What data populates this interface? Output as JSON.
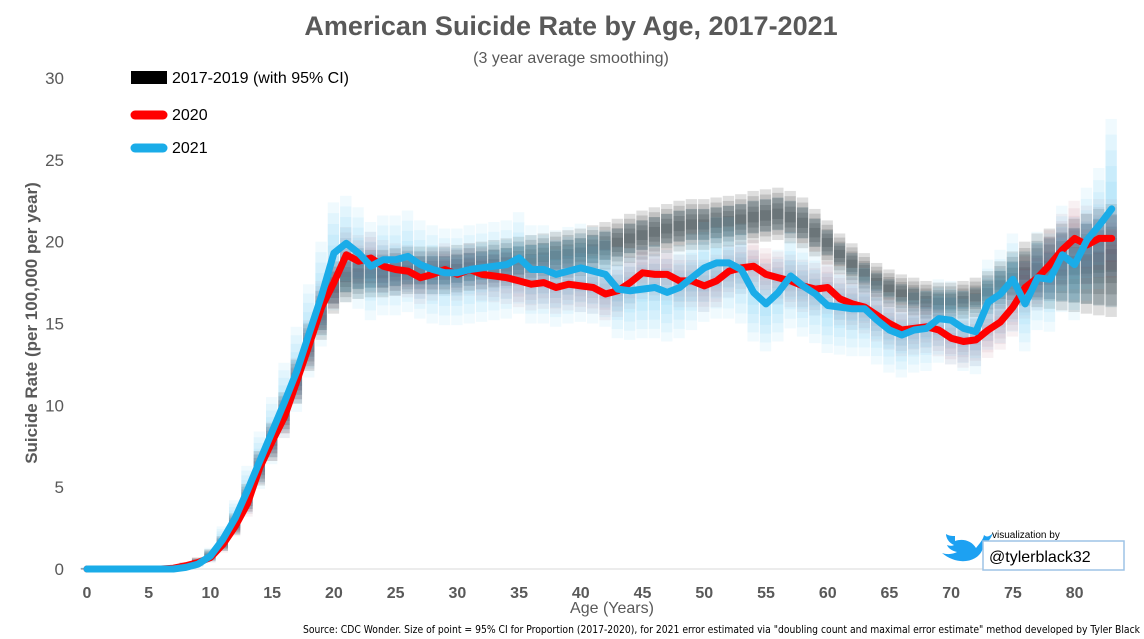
{
  "chart_data": {
    "type": "line",
    "title": "American Suicide Rate by Age, 2017-2021",
    "subtitle": "(3 year average smoothing)",
    "xlabel": "Age (Years)",
    "ylabel": "Suicide Rate (per 100,000 per year)",
    "xlim": [
      0,
      84
    ],
    "ylim": [
      0,
      30
    ],
    "xticks": [
      0,
      5,
      10,
      15,
      20,
      25,
      30,
      35,
      40,
      45,
      50,
      55,
      60,
      65,
      70,
      75,
      80
    ],
    "yticks": [
      0,
      5,
      10,
      15,
      20,
      25,
      30
    ],
    "legend_position": "top-left",
    "series": [
      {
        "name": "2017-2019 (with 95% CI)",
        "color": "#000000",
        "x": [
          0,
          1,
          2,
          3,
          4,
          5,
          6,
          7,
          8,
          9,
          10,
          11,
          12,
          13,
          14,
          15,
          16,
          17,
          18,
          19,
          20,
          21,
          22,
          23,
          24,
          25,
          26,
          27,
          28,
          29,
          30,
          31,
          32,
          33,
          34,
          35,
          36,
          37,
          38,
          39,
          40,
          41,
          42,
          43,
          44,
          45,
          46,
          47,
          48,
          49,
          50,
          51,
          52,
          53,
          54,
          55,
          56,
          57,
          58,
          59,
          60,
          61,
          62,
          63,
          64,
          65,
          66,
          67,
          68,
          69,
          70,
          71,
          72,
          73,
          74,
          75,
          76,
          77,
          78,
          79,
          80,
          81,
          82,
          83
        ],
        "values": [
          0,
          0,
          0,
          0,
          0,
          0,
          0,
          0.05,
          0.2,
          0.4,
          0.8,
          1.5,
          2.7,
          4.3,
          6.1,
          7.7,
          9.5,
          11.4,
          13.5,
          15.5,
          17.2,
          17.8,
          18.0,
          18.0,
          18.0,
          18.1,
          18.2,
          18.2,
          18.2,
          18.2,
          18.3,
          18.4,
          18.5,
          18.6,
          18.7,
          18.8,
          18.9,
          19.0,
          19.1,
          19.2,
          19.3,
          19.5,
          19.7,
          19.9,
          20.2,
          20.4,
          20.6,
          20.8,
          20.9,
          21.0,
          21.0,
          21.1,
          21.2,
          21.3,
          21.5,
          21.6,
          21.7,
          21.5,
          21.1,
          20.5,
          19.9,
          19.2,
          18.6,
          18.0,
          17.5,
          17.1,
          16.8,
          16.6,
          16.4,
          16.3,
          16.3,
          16.4,
          16.6,
          16.9,
          17.3,
          17.7,
          18.0,
          18.3,
          18.5,
          18.6,
          18.6,
          18.6,
          18.6,
          18.6
        ],
        "ci_low": [
          0,
          0,
          0,
          0,
          0,
          0,
          0,
          0,
          0.05,
          0.2,
          0.5,
          1.1,
          2.1,
          3.5,
          5.1,
          6.6,
          8.3,
          10.1,
          12.1,
          14.0,
          15.6,
          16.3,
          16.5,
          16.6,
          16.6,
          16.7,
          16.8,
          16.8,
          16.8,
          16.8,
          16.9,
          17.0,
          17.1,
          17.2,
          17.3,
          17.4,
          17.5,
          17.6,
          17.7,
          17.8,
          17.9,
          18.1,
          18.3,
          18.5,
          18.7,
          18.9,
          19.1,
          19.3,
          19.4,
          19.5,
          19.5,
          19.6,
          19.7,
          19.8,
          19.9,
          20.0,
          20.1,
          19.9,
          19.6,
          19.1,
          18.6,
          18.0,
          17.4,
          16.9,
          16.4,
          16.0,
          15.7,
          15.5,
          15.3,
          15.2,
          15.2,
          15.3,
          15.4,
          15.6,
          15.9,
          16.1,
          16.1,
          16.0,
          15.9,
          15.8,
          15.7,
          15.6,
          15.5,
          15.4
        ],
        "ci_high": [
          0.05,
          0.05,
          0.05,
          0.05,
          0.05,
          0.05,
          0.05,
          0.2,
          0.4,
          0.7,
          1.2,
          2.0,
          3.4,
          5.2,
          7.2,
          8.9,
          10.8,
          12.8,
          15.0,
          17.0,
          18.8,
          19.4,
          19.6,
          19.5,
          19.5,
          19.6,
          19.7,
          19.7,
          19.7,
          19.7,
          19.8,
          19.9,
          20.0,
          20.1,
          20.2,
          20.3,
          20.4,
          20.5,
          20.6,
          20.7,
          20.8,
          21.0,
          21.2,
          21.4,
          21.7,
          21.9,
          22.1,
          22.3,
          22.5,
          22.6,
          22.6,
          22.7,
          22.8,
          22.9,
          23.1,
          23.2,
          23.3,
          23.1,
          22.7,
          22.0,
          21.3,
          20.5,
          19.9,
          19.3,
          18.7,
          18.3,
          18.0,
          17.8,
          17.6,
          17.5,
          17.5,
          17.6,
          17.8,
          18.2,
          18.8,
          19.4,
          20.0,
          20.5,
          20.8,
          21.1,
          21.4,
          21.7,
          22.0,
          22.3
        ]
      },
      {
        "name": "2020",
        "color": "#ff0000",
        "x": [
          0,
          1,
          2,
          3,
          4,
          5,
          6,
          7,
          8,
          9,
          10,
          11,
          12,
          13,
          14,
          15,
          16,
          17,
          18,
          19,
          20,
          21,
          22,
          23,
          24,
          25,
          26,
          27,
          28,
          29,
          30,
          31,
          32,
          33,
          34,
          35,
          36,
          37,
          38,
          39,
          40,
          41,
          42,
          43,
          44,
          45,
          46,
          47,
          48,
          49,
          50,
          51,
          52,
          53,
          54,
          55,
          56,
          57,
          58,
          59,
          60,
          61,
          62,
          63,
          64,
          65,
          66,
          67,
          68,
          69,
          70,
          71,
          72,
          73,
          74,
          75,
          76,
          77,
          78,
          79,
          80,
          81,
          82,
          83
        ],
        "values": [
          0,
          0,
          0,
          0,
          0,
          0,
          0,
          0.05,
          0.2,
          0.4,
          0.7,
          1.5,
          2.6,
          4.0,
          6.2,
          7.8,
          9.3,
          11.5,
          13.7,
          16.0,
          17.5,
          19.2,
          18.8,
          19.0,
          18.5,
          18.3,
          18.2,
          17.8,
          18.0,
          18.3,
          18.0,
          18.3,
          18.0,
          17.9,
          17.8,
          17.6,
          17.4,
          17.5,
          17.2,
          17.4,
          17.3,
          17.2,
          16.8,
          17.0,
          17.5,
          18.1,
          18.0,
          18.0,
          17.6,
          17.6,
          17.3,
          17.6,
          18.2,
          18.4,
          18.5,
          18.0,
          17.8,
          17.6,
          17.3,
          17.1,
          17.2,
          16.5,
          16.2,
          16.0,
          15.5,
          15.0,
          14.6,
          14.7,
          14.8,
          14.6,
          14.1,
          13.9,
          14.0,
          14.6,
          15.1,
          16.0,
          17.2,
          17.8,
          18.6,
          19.5,
          20.2,
          19.8,
          20.2,
          20.2
        ],
        "ci_low": [
          0,
          0,
          0,
          0,
          0,
          0,
          0,
          0,
          0.05,
          0.2,
          0.4,
          1.0,
          2.0,
          3.2,
          5.2,
          6.6,
          8.0,
          10.1,
          12.2,
          14.4,
          15.9,
          17.5,
          17.2,
          17.4,
          16.9,
          16.7,
          16.6,
          16.2,
          16.4,
          16.7,
          16.4,
          16.7,
          16.4,
          16.3,
          16.2,
          16.0,
          15.8,
          15.9,
          15.6,
          15.8,
          15.7,
          15.6,
          15.2,
          15.4,
          15.9,
          16.5,
          16.4,
          16.4,
          16.0,
          16.0,
          15.7,
          16.0,
          16.6,
          16.8,
          16.9,
          16.4,
          16.2,
          16.0,
          15.7,
          15.5,
          15.6,
          14.9,
          14.6,
          14.4,
          13.9,
          13.4,
          13.0,
          13.1,
          13.2,
          13.0,
          12.5,
          12.3,
          12.4,
          12.9,
          13.4,
          14.2,
          15.3,
          15.8,
          16.5,
          17.3,
          17.9,
          17.4,
          17.8,
          17.8
        ],
        "ci_high": [
          0.05,
          0.05,
          0.05,
          0.05,
          0.05,
          0.05,
          0.05,
          0.2,
          0.4,
          0.7,
          1.0,
          2.0,
          3.2,
          4.8,
          7.2,
          9.0,
          10.6,
          12.9,
          15.2,
          17.6,
          19.1,
          20.9,
          20.4,
          20.6,
          20.1,
          19.9,
          19.8,
          19.4,
          19.6,
          19.9,
          19.6,
          19.9,
          19.6,
          19.5,
          19.4,
          19.2,
          19.0,
          19.1,
          18.8,
          19.0,
          18.9,
          18.8,
          18.4,
          18.6,
          19.1,
          19.7,
          19.6,
          19.6,
          19.2,
          19.2,
          18.9,
          19.2,
          19.8,
          20.0,
          20.1,
          19.6,
          19.4,
          19.2,
          18.9,
          18.7,
          18.8,
          18.1,
          17.8,
          17.6,
          17.1,
          16.6,
          16.2,
          16.3,
          16.4,
          16.2,
          15.7,
          15.5,
          15.6,
          16.3,
          16.8,
          17.8,
          19.1,
          19.8,
          20.7,
          21.7,
          22.5,
          22.2,
          22.6,
          22.6
        ]
      },
      {
        "name": "2021",
        "color": "#1aace8",
        "x": [
          0,
          1,
          2,
          3,
          4,
          5,
          6,
          7,
          8,
          9,
          10,
          11,
          12,
          13,
          14,
          15,
          16,
          17,
          18,
          19,
          20,
          21,
          22,
          23,
          24,
          25,
          26,
          27,
          28,
          29,
          30,
          31,
          32,
          33,
          34,
          35,
          36,
          37,
          38,
          39,
          40,
          41,
          42,
          43,
          44,
          45,
          46,
          47,
          48,
          49,
          50,
          51,
          52,
          53,
          54,
          55,
          56,
          57,
          58,
          59,
          60,
          61,
          62,
          63,
          64,
          65,
          66,
          67,
          68,
          69,
          70,
          71,
          72,
          73,
          74,
          75,
          76,
          77,
          78,
          79,
          80,
          81,
          82,
          83
        ],
        "values": [
          0,
          0,
          0,
          0,
          0,
          0,
          0,
          0,
          0.1,
          0.3,
          0.8,
          1.8,
          3.1,
          4.8,
          6.6,
          8.4,
          10.2,
          12.1,
          14.4,
          16.7,
          19.3,
          19.9,
          19.3,
          18.5,
          18.9,
          18.9,
          19.1,
          18.6,
          18.3,
          18.1,
          18.1,
          18.3,
          18.4,
          18.5,
          18.6,
          19.0,
          18.3,
          18.3,
          18.0,
          18.2,
          18.4,
          18.2,
          18.0,
          17.1,
          17.0,
          17.1,
          17.2,
          16.9,
          17.2,
          17.8,
          18.4,
          18.7,
          18.7,
          18.3,
          16.9,
          16.2,
          16.9,
          17.9,
          17.3,
          16.8,
          16.1,
          16.0,
          15.9,
          15.9,
          15.2,
          14.6,
          14.3,
          14.6,
          14.7,
          15.3,
          15.2,
          14.7,
          14.5,
          16.3,
          16.8,
          17.7,
          16.2,
          17.8,
          17.7,
          19.2,
          18.6,
          20.1,
          21.0,
          22.0
        ],
        "ci_low": [
          0,
          0,
          0,
          0,
          0,
          0,
          0,
          0,
          0,
          0.1,
          0.4,
          1.1,
          2.1,
          3.4,
          4.9,
          6.4,
          8.0,
          9.6,
          11.7,
          13.6,
          15.8,
          16.3,
          15.9,
          15.2,
          15.5,
          15.5,
          15.7,
          15.3,
          15.0,
          14.9,
          14.9,
          15.0,
          15.1,
          15.2,
          15.3,
          15.6,
          15.0,
          15.0,
          14.8,
          15.0,
          15.1,
          15.0,
          14.8,
          14.1,
          14.0,
          14.1,
          14.1,
          13.9,
          14.1,
          14.6,
          15.1,
          15.3,
          15.3,
          15.0,
          13.9,
          13.3,
          13.9,
          14.7,
          14.2,
          13.8,
          13.2,
          13.1,
          13.0,
          13.0,
          12.5,
          12.0,
          11.7,
          12.0,
          12.1,
          12.6,
          12.5,
          12.1,
          11.9,
          13.4,
          13.8,
          14.5,
          13.3,
          14.6,
          14.5,
          15.7,
          15.2,
          16.4,
          17.1,
          17.9
        ],
        "ci_high": [
          0.1,
          0.1,
          0.1,
          0.1,
          0.1,
          0.1,
          0.1,
          0.1,
          0.3,
          0.6,
          1.3,
          2.6,
          4.2,
          6.3,
          8.4,
          10.5,
          12.6,
          14.8,
          17.4,
          20.0,
          22.4,
          22.8,
          22.1,
          21.2,
          21.6,
          21.6,
          21.9,
          21.3,
          21.0,
          20.8,
          20.8,
          21.0,
          21.1,
          21.2,
          21.3,
          21.8,
          21.0,
          21.0,
          20.7,
          20.9,
          21.1,
          20.9,
          20.7,
          19.7,
          19.6,
          19.7,
          19.8,
          19.5,
          19.8,
          20.5,
          21.2,
          21.5,
          21.5,
          21.1,
          19.5,
          18.7,
          19.5,
          20.6,
          19.9,
          19.4,
          18.6,
          18.5,
          18.4,
          18.4,
          17.6,
          16.9,
          16.6,
          16.9,
          17.0,
          17.7,
          17.6,
          17.0,
          16.8,
          18.9,
          19.5,
          20.5,
          18.8,
          20.6,
          20.5,
          22.2,
          21.5,
          23.3,
          24.5,
          27.5
        ]
      }
    ]
  },
  "legend": {
    "items": [
      {
        "label": "2017-2019 (with 95% CI)",
        "color": "#000000"
      },
      {
        "label": "2020",
        "color": "#ff0000"
      },
      {
        "label": "2021",
        "color": "#1aace8"
      }
    ]
  },
  "credit": {
    "caption": "visualization by",
    "handle": "@tylerblack32",
    "bird_color": "#1da1f2"
  },
  "source_note": "Source: CDC Wonder. Size of point = 95% CI for Proportion (2017-2020), for 2021 error estimated via \"doubling count and maximal error estimate\" method developed by Tyler Black"
}
